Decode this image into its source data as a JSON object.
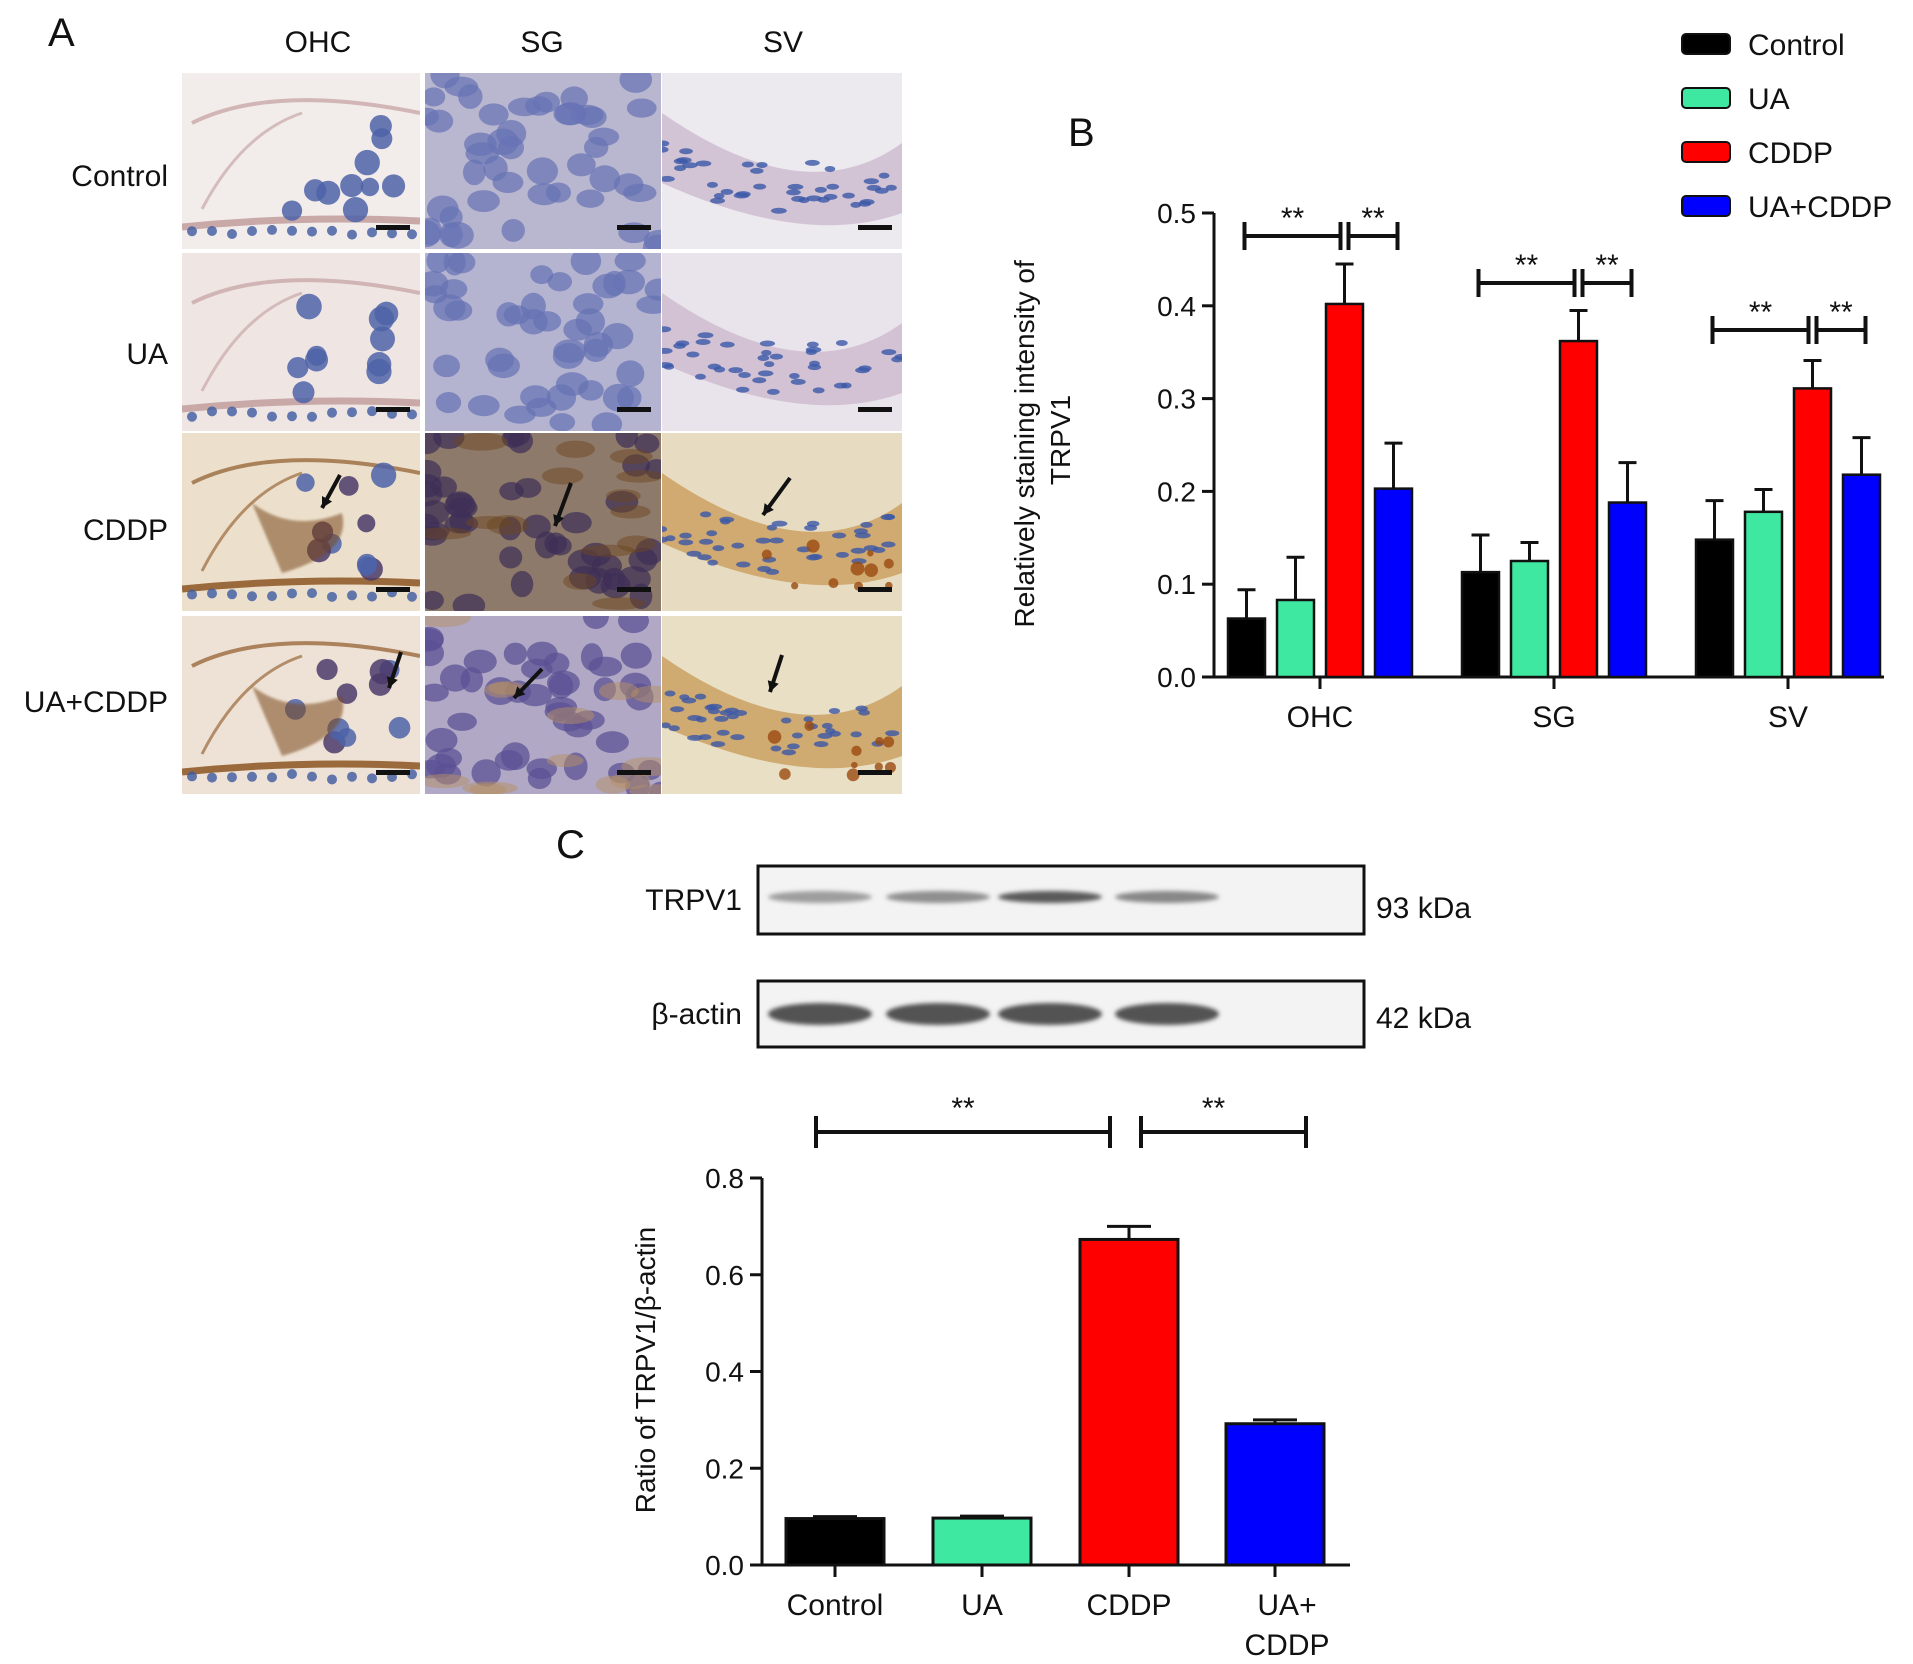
{
  "panel_a": {
    "letter": "A",
    "columns": [
      "OHC",
      "SG",
      "SV"
    ],
    "rows": [
      "Control",
      "UA",
      "CDDP",
      "UA+CDDP"
    ]
  },
  "chart_data": [
    {
      "id": "B",
      "letter": "B",
      "type": "bar",
      "categories": [
        "OHC",
        "SG",
        "SV"
      ],
      "ylabel": "Relatively staining intensity of TRPV1",
      "ylim": [
        0,
        0.5
      ],
      "yticks": [
        "0.0",
        "0.1",
        "0.2",
        "0.3",
        "0.4",
        "0.5"
      ],
      "grid": false,
      "legend": "top-right",
      "series": [
        {
          "name": "Control",
          "color": "#000000",
          "values": [
            0.063,
            0.113,
            0.148
          ],
          "errors": [
            0.031,
            0.04,
            0.042
          ]
        },
        {
          "name": "UA",
          "color": "#3fe8a0",
          "values": [
            0.083,
            0.125,
            0.178
          ],
          "errors": [
            0.046,
            0.02,
            0.024
          ]
        },
        {
          "name": "CDDP",
          "color": "#ff0000",
          "values": [
            0.402,
            0.362,
            0.311
          ],
          "errors": [
            0.043,
            0.033,
            0.03
          ]
        },
        {
          "name": "UA+CDDP",
          "color": "#0000ff",
          "values": [
            0.203,
            0.188,
            0.218
          ],
          "errors": [
            0.049,
            0.043,
            0.04
          ]
        }
      ],
      "significance": [
        {
          "category": 0,
          "from": 0,
          "to": 2,
          "label": "**"
        },
        {
          "category": 0,
          "from": 2,
          "to": 3,
          "label": "**"
        },
        {
          "category": 1,
          "from": 0,
          "to": 2,
          "label": "**"
        },
        {
          "category": 1,
          "from": 2,
          "to": 3,
          "label": "**"
        },
        {
          "category": 2,
          "from": 0,
          "to": 2,
          "label": "**"
        },
        {
          "category": 2,
          "from": 2,
          "to": 3,
          "label": "**"
        }
      ]
    },
    {
      "id": "C",
      "letter": "C",
      "type": "bar",
      "categories": [
        "Control",
        "UA",
        "CDDP",
        "UA+CDDP"
      ],
      "category_lines": [
        [
          "Control"
        ],
        [
          "UA"
        ],
        [
          "CDDP"
        ],
        [
          "UA+",
          "CDDP"
        ]
      ],
      "ylabel": "Ratio of TRPV1/β-actin",
      "ylim": [
        0,
        0.8
      ],
      "yticks": [
        "0.0",
        "0.2",
        "0.4",
        "0.6",
        "0.8"
      ],
      "grid": false,
      "values": [
        0.096,
        0.097,
        0.673,
        0.292
      ],
      "errors": [
        0.004,
        0.004,
        0.027,
        0.008
      ],
      "colors": [
        "#000000",
        "#3fe8a0",
        "#ff0000",
        "#0000ff"
      ],
      "significance": [
        {
          "from": 0,
          "to": 2,
          "label": "**"
        },
        {
          "from": 2,
          "to": 3,
          "label": "**"
        }
      ]
    }
  ],
  "blot": {
    "bands": [
      {
        "name": "TRPV1",
        "size": "93 kDa",
        "intensity": [
          0.35,
          0.45,
          0.8,
          0.5
        ]
      },
      {
        "name": "β-actin",
        "size": "42 kDa",
        "intensity": [
          0.85,
          0.85,
          0.85,
          0.85
        ]
      }
    ]
  }
}
